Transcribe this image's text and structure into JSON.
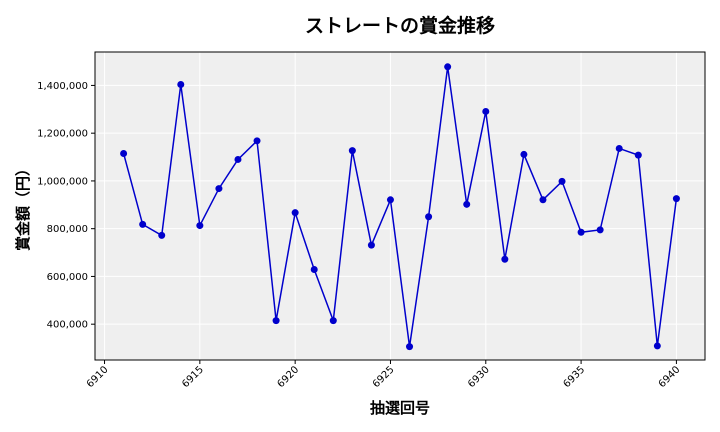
{
  "chart_data": {
    "type": "line",
    "title": "ストレートの賞金推移",
    "xlabel": "抽選回号",
    "ylabel": "賞金額（円）",
    "x": [
      6911,
      6912,
      6913,
      6914,
      6915,
      6916,
      6917,
      6918,
      6919,
      6920,
      6921,
      6922,
      6923,
      6924,
      6925,
      6926,
      6927,
      6928,
      6929,
      6930,
      6931,
      6932,
      6933,
      6934,
      6935,
      6936,
      6937,
      6938,
      6939,
      6940
    ],
    "series": [
      {
        "values": [
          1115000,
          818000,
          772000,
          1404000,
          813000,
          968000,
          1090000,
          1168000,
          415000,
          867000,
          629000,
          415000,
          1127000,
          731000,
          921000,
          306000,
          850000,
          1478000,
          902000,
          1291000,
          672000,
          1111000,
          921000,
          998000,
          785000,
          795000,
          1136000,
          1108000,
          309000,
          926000
        ],
        "color": "#0000cc"
      }
    ],
    "x_ticks": [
      6910,
      6915,
      6920,
      6925,
      6930,
      6935,
      6940
    ],
    "y_ticks": [
      400000,
      600000,
      800000,
      1000000,
      1200000,
      1400000
    ],
    "xlim": [
      6909.5,
      6941.5
    ],
    "ylim": [
      250000,
      1540000
    ],
    "grid": true,
    "background": "#efefef"
  }
}
